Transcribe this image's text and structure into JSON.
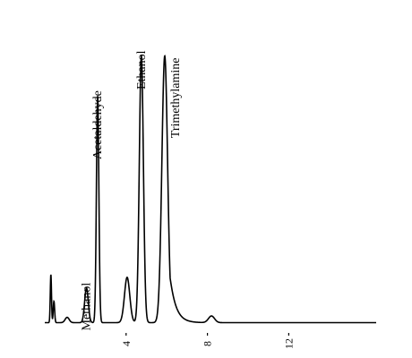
{
  "chart_data": {
    "type": "line",
    "title": "",
    "xlabel": "",
    "ylabel": "",
    "xlim": [
      0,
      16.3
    ],
    "ylim": [
      0,
      1
    ],
    "x_ticks": [
      {
        "value": 4,
        "label": "4"
      },
      {
        "value": 8,
        "label": "8"
      },
      {
        "value": 12,
        "label": "12"
      }
    ],
    "grid": false,
    "legend": "none",
    "line_color": "#000000",
    "baseline": 0.005,
    "peaks": [
      {
        "name": "",
        "x": 0.3,
        "height": 0.18,
        "width": 0.03
      },
      {
        "name": "",
        "x": 0.45,
        "height": 0.08,
        "width": 0.035
      },
      {
        "name": "",
        "x": 1.1,
        "height": 0.02,
        "width": 0.1
      },
      {
        "name": "Methanol",
        "x": 2.05,
        "height": 0.13,
        "width": 0.09
      },
      {
        "name": "Acetaldehyde",
        "x": 2.6,
        "height": 0.85,
        "width": 0.06
      },
      {
        "name": "",
        "x": 4.05,
        "height": 0.17,
        "width": 0.13
      },
      {
        "name": "Ethanol",
        "x": 4.75,
        "height": 1.0,
        "width": 0.1
      },
      {
        "name": "Trimethylamine",
        "x": 5.9,
        "height": 1.0,
        "width": 0.14,
        "tail": 0.28
      },
      {
        "name": "",
        "x": 8.2,
        "height": 0.025,
        "width": 0.15
      }
    ]
  }
}
